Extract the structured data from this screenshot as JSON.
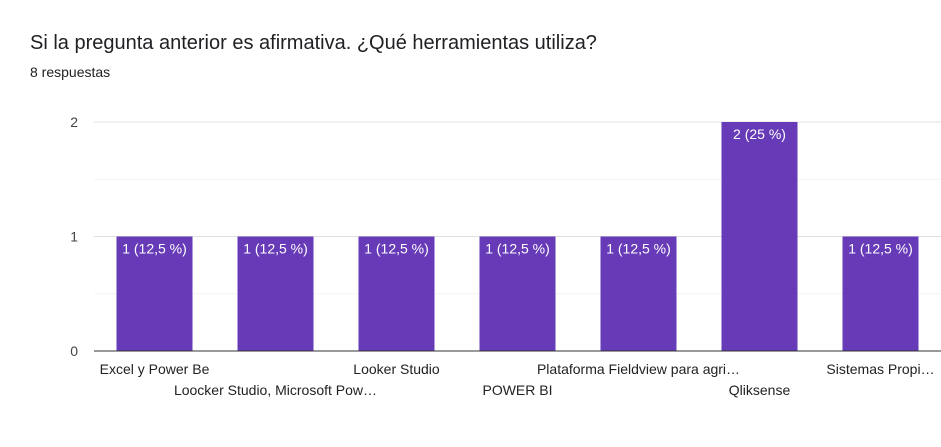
{
  "header": {
    "title": "Si la pregunta anterior es afirmativa. ¿Qué herramientas utiliza?",
    "responses": "8 respuestas"
  },
  "colors": {
    "bar": "#673ab7",
    "grid": "#e0e0e0",
    "minor_grid": "#f3f3f3",
    "axis": "#333333"
  },
  "chart_data": {
    "type": "bar",
    "title": "Si la pregunta anterior es afirmativa. ¿Qué herramientas utiliza?",
    "xlabel": "",
    "ylabel": "",
    "ylim": [
      0,
      2
    ],
    "yticks": [
      "0",
      "1",
      "2"
    ],
    "grid": true,
    "categories": [
      "Excel y Power Be",
      "Loocker Studio, Microsoft Pow…",
      "Looker Studio",
      "POWER BI",
      "Plataforma Fieldview para agri…",
      "Qliksense",
      "Sistemas Propi…"
    ],
    "values": [
      1,
      1,
      1,
      1,
      1,
      2,
      1
    ],
    "data_labels": [
      "1 (12,5 %)",
      "1 (12,5 %)",
      "1 (12,5 %)",
      "1 (12,5 %)",
      "1 (12,5 %)",
      "2 (25 %)",
      "1 (12,5 %)"
    ]
  }
}
